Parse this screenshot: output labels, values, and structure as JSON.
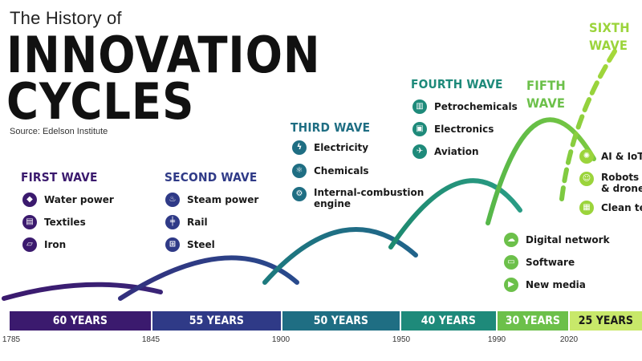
{
  "header": {
    "supertitle": "The History of",
    "title_line1": "INNOVATION",
    "title_line2": "CYCLES",
    "source": "Source: Edelson Institute"
  },
  "waves": [
    {
      "title": [
        "FIRST WAVE"
      ],
      "color": "#3b1a6e",
      "items": [
        {
          "icon": "water-drop-icon",
          "glyph": "💧",
          "label": [
            "Water power"
          ]
        },
        {
          "icon": "textiles-icon",
          "glyph": "▤",
          "label": [
            "Textiles"
          ]
        },
        {
          "icon": "iron-ingot-icon",
          "glyph": "▱",
          "label": [
            "Iron"
          ]
        }
      ]
    },
    {
      "title": [
        "SECOND WAVE"
      ],
      "color": "#2f3a87",
      "items": [
        {
          "icon": "steam-train-icon",
          "glyph": "♨",
          "label": [
            "Steam power"
          ]
        },
        {
          "icon": "rail-track-icon",
          "glyph": "╪",
          "label": [
            "Rail"
          ]
        },
        {
          "icon": "steel-beam-icon",
          "glyph": "⊞",
          "label": [
            "Steel"
          ]
        }
      ]
    },
    {
      "title": [
        "THIRD WAVE"
      ],
      "color": "#1f6e83",
      "items": [
        {
          "icon": "lightning-bolt-icon",
          "glyph": "⚡",
          "label": [
            "Electricity"
          ]
        },
        {
          "icon": "molecule-icon",
          "glyph": "⚛",
          "label": [
            "Chemicals"
          ]
        },
        {
          "icon": "engine-icon",
          "glyph": "⚙",
          "label": [
            "Internal-combustion",
            "engine"
          ]
        }
      ]
    },
    {
      "title": [
        "FOURTH WAVE"
      ],
      "color": "#1e8a7a",
      "items": [
        {
          "icon": "oil-barrel-icon",
          "glyph": "▥",
          "label": [
            "Petrochemicals"
          ]
        },
        {
          "icon": "microchip-icon",
          "glyph": "▣",
          "label": [
            "Electronics"
          ]
        },
        {
          "icon": "airplane-icon",
          "glyph": "✈",
          "label": [
            "Aviation"
          ]
        }
      ]
    },
    {
      "title": [
        "FIFTH",
        "WAVE"
      ],
      "color": "#6cc04a",
      "items": [
        {
          "icon": "network-icon",
          "glyph": "☁",
          "label": [
            "Digital network"
          ]
        },
        {
          "icon": "software-window-icon",
          "glyph": "▭",
          "label": [
            "Software"
          ]
        },
        {
          "icon": "media-play-icon",
          "glyph": "▶",
          "label": [
            "New media"
          ]
        }
      ]
    },
    {
      "title": [
        "SIXTH",
        "WAVE"
      ],
      "color": "#9bd43b",
      "items": [
        {
          "icon": "ai-brain-icon",
          "glyph": "✺",
          "label": [
            "AI & IoT"
          ]
        },
        {
          "icon": "robot-icon",
          "glyph": "☺",
          "label": [
            "Robots",
            "& drones"
          ]
        },
        {
          "icon": "solar-panel-icon",
          "glyph": "▦",
          "label": [
            "Clean tech"
          ]
        }
      ]
    }
  ],
  "timeline": {
    "segments": [
      {
        "label": "60 YEARS",
        "color": "#3b1a6e"
      },
      {
        "label": "55 YEARS",
        "color": "#2f3a87"
      },
      {
        "label": "50 YEARS",
        "color": "#1f6e83"
      },
      {
        "label": "40 YEARS",
        "color": "#1e8a7a"
      },
      {
        "label": "30 YEARS",
        "color": "#6cc04a"
      },
      {
        "label": "25 YEARS",
        "color": "#c8e86a",
        "text_color": "#1a1a1a"
      }
    ],
    "years": [
      "1785",
      "1845",
      "1900",
      "1950",
      "1990",
      "2020"
    ]
  }
}
